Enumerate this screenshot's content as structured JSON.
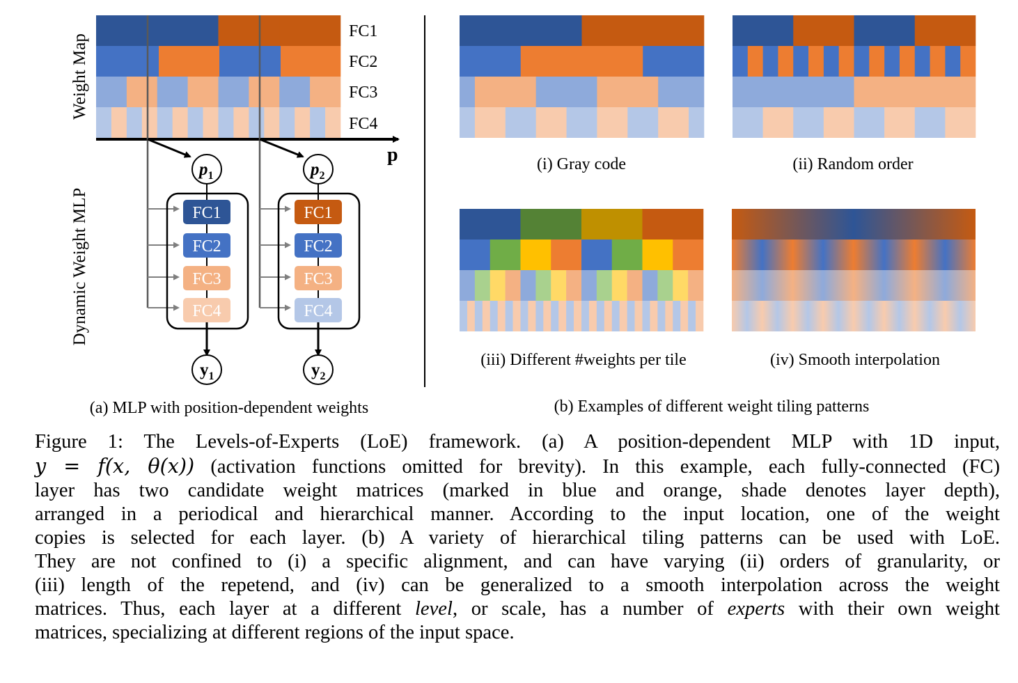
{
  "colors": {
    "blue": [
      "#2e5596",
      "#4472c4",
      "#8eaadb",
      "#b4c7e7"
    ],
    "orange": [
      "#c55a11",
      "#ed7d31",
      "#f4b183",
      "#f8cbad"
    ],
    "green": [
      "#548235",
      "#70ad47",
      "#a9d18e"
    ],
    "gold": [
      "#bf9000",
      "#ffc000",
      "#ffd966"
    ],
    "arrow_gray": "#808080"
  },
  "panel_a": {
    "weight_map_label": "Weight Map",
    "mlp_label": "Dynamic Weight MLP",
    "axis_label": "p",
    "row_labels": [
      "FC1",
      "FC2",
      "FC3",
      "FC4"
    ],
    "inputs": [
      {
        "sym": "p",
        "sub": "1"
      },
      {
        "sym": "p",
        "sub": "2"
      }
    ],
    "outputs": [
      {
        "sym": "y",
        "sub": "1"
      },
      {
        "sym": "y",
        "sub": "2"
      }
    ],
    "mlp_1_layers": [
      "FC1",
      "FC2",
      "FC3",
      "FC4"
    ],
    "mlp_2_layers": [
      "FC1",
      "FC2",
      "FC3",
      "FC4"
    ],
    "caption": "(a) MLP with position-dependent weights"
  },
  "panel_b": {
    "caption": "(b) Examples of different weight tiling patterns",
    "examples": [
      {
        "caption": "(i) Gray code"
      },
      {
        "caption": "(ii) Random order"
      },
      {
        "caption": "(iii) Different #weights per tile"
      },
      {
        "caption": "(iv) Smooth interpolation"
      }
    ]
  },
  "caption": {
    "figure_label": "Figure 1:",
    "l1": "The Levels-of-Experts (LoE) framework. (a) A position-dependent MLP with 1D input,",
    "l2_math": "y = f(x, θ(x))",
    "l2_rest": " (activation functions omitted for brevity). In this example, each fully-connected (FC)",
    "l3": "layer has two candidate weight matrices (marked in blue and orange, shade denotes layer depth),",
    "l4": "arranged in a periodical and hierarchical manner. According to the input location, one of the weight",
    "l5": "copies is selected for each layer. (b) A variety of hierarchical tiling patterns can be used with LoE.",
    "l6": "They are not confined to (i) a specific alignment, and can have varying (ii) orders of granularity, or",
    "l7": "(iii) length of the repetend, and (iv) can be generalized to a smooth interpolation across the weight",
    "l8_a": "matrices. Thus, each layer at a different ",
    "l8_level": "level",
    "l8_b": ", or scale, has a number of ",
    "l8_experts": "experts",
    "l8_c": " with their own weight",
    "l9": "matrices, specializing at different regions of the input space."
  }
}
